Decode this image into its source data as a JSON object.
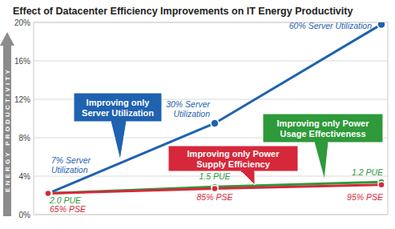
{
  "chart_data": {
    "type": "line",
    "title": "Effect of Datacenter Efficiency Improvements on IT Energy Productivity",
    "ylabel": "ENERGY PRODUCTIVITY",
    "categories": [
      null,
      null,
      null
    ],
    "ylim": [
      0,
      20
    ],
    "yticks": [
      {
        "value": 0,
        "label": "0%"
      },
      {
        "value": 4,
        "label": "4%"
      },
      {
        "value": 8,
        "label": "8%"
      },
      {
        "value": 12,
        "label": "12%"
      },
      {
        "value": 16,
        "label": "16%"
      },
      {
        "value": 20,
        "label": "20%"
      }
    ],
    "grid": true,
    "tick_labels": "y",
    "series": [
      {
        "name": "Improving only Server Utilization",
        "color": "#1f62b0",
        "marker": "circle",
        "values": [
          2.2,
          9.5,
          19.8
        ],
        "point_labels": [
          "7% Server Utilization",
          "30% Server Utilization",
          "60% Server Utilization"
        ]
      },
      {
        "name": "Improving only Power Usage Effectiveness",
        "color": "#2e9a3a",
        "marker": "circle",
        "values": [
          2.2,
          2.9,
          3.4
        ],
        "point_labels": [
          "2.0 PUE",
          "1.5 PUE",
          "1.2 PUE"
        ]
      },
      {
        "name": "Improving only Power Supply Efficiency",
        "color": "#d6283a",
        "marker": "circle",
        "values": [
          2.2,
          2.7,
          3.1
        ],
        "point_labels": [
          "65% PSE",
          "85% PSE",
          "95% PSE"
        ]
      }
    ]
  }
}
